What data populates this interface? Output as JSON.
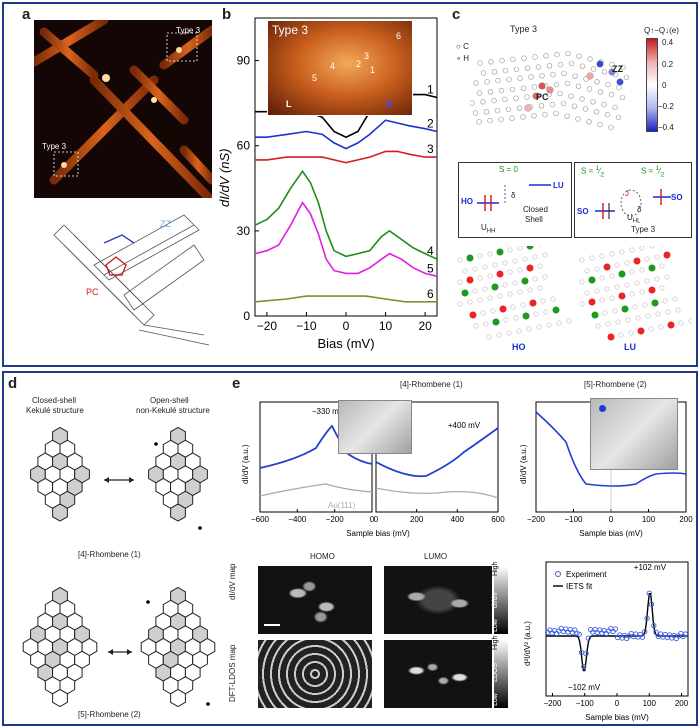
{
  "top_panel_labels": {
    "a": "a",
    "b": "b",
    "c": "c"
  },
  "bottom_panel_labels": {
    "d": "d",
    "e": "e"
  },
  "panel_a": {
    "type3_label_1": "Type 3",
    "type3_label_2": "Type 3",
    "zz_label": "ZZ",
    "pc_label": "PC"
  },
  "panel_b": {
    "inset_title": "Type 3",
    "inset_numbers": [
      "1",
      "2",
      "3",
      "4",
      "5",
      "6"
    ],
    "inset_left": "L",
    "inset_right": "R",
    "chart_data": {
      "type": "line",
      "xlabel": "Bias (mV)",
      "ylabel": "dI/dV (nS)",
      "xlim": [
        -23,
        23
      ],
      "ylim": [
        0,
        105
      ],
      "xticks": [
        -20,
        -10,
        0,
        10,
        20
      ],
      "yticks": [
        0,
        30,
        60,
        90
      ],
      "series": [
        {
          "name": "1",
          "color": "#000000",
          "x": [
            -23,
            -20,
            -15,
            -10,
            -6,
            -3,
            0,
            3,
            6,
            10,
            13,
            16,
            20,
            23
          ],
          "y": [
            72,
            72,
            73,
            72,
            70,
            65,
            63,
            65,
            72,
            82,
            80,
            78,
            78,
            77
          ]
        },
        {
          "name": "2",
          "color": "#1f2fd0",
          "x": [
            -23,
            -20,
            -15,
            -10,
            -6,
            -3,
            0,
            3,
            6,
            10,
            13,
            16,
            20,
            23
          ],
          "y": [
            63,
            63,
            64,
            65,
            64,
            61,
            59,
            61,
            64,
            69,
            68,
            67,
            66,
            65
          ]
        },
        {
          "name": "3",
          "color": "#d11f1f",
          "x": [
            -23,
            -20,
            -15,
            -10,
            -6,
            -3,
            0,
            3,
            6,
            10,
            13,
            16,
            20,
            23
          ],
          "y": [
            55,
            55,
            56,
            56,
            56,
            55,
            54,
            55,
            56,
            58,
            58,
            57,
            56,
            56
          ]
        },
        {
          "name": "4",
          "color": "#1a8f1a",
          "x": [
            -23,
            -20,
            -17,
            -14,
            -11,
            -9,
            -7,
            -5,
            -3,
            0,
            3,
            6,
            9,
            11,
            14,
            17,
            20,
            23
          ],
          "y": [
            32,
            34,
            38,
            45,
            51,
            47,
            40,
            30,
            23,
            21,
            22,
            23,
            28,
            30,
            27,
            24,
            22,
            20
          ]
        },
        {
          "name": "5",
          "color": "#e020e0",
          "x": [
            -23,
            -20,
            -17,
            -14,
            -11,
            -9,
            -7,
            -5,
            -3,
            0,
            3,
            6,
            9,
            11,
            14,
            17,
            20,
            23
          ],
          "y": [
            22,
            23,
            25,
            32,
            40,
            36,
            29,
            20,
            16,
            15,
            15,
            17,
            20,
            22,
            20,
            17,
            15,
            14
          ]
        },
        {
          "name": "6",
          "color": "#8a8a2a",
          "x": [
            -23,
            -15,
            -10,
            -5,
            0,
            5,
            10,
            15,
            23
          ],
          "y": [
            5,
            6,
            7,
            7,
            7,
            7,
            6,
            5,
            5
          ]
        }
      ]
    }
  },
  "panel_c": {
    "title": "Type 3",
    "legend_c": "C",
    "legend_h": "H",
    "colorbar_label": "Q↑−Q↓(e)",
    "colorbar_ticks": [
      "0.4",
      "0.2",
      "0",
      "−0.2",
      "−0.4"
    ],
    "zz_label": "ZZ",
    "pc_label": "PC",
    "closed_shell": {
      "spin": "S = 0",
      "ho": "HO",
      "lu": "LU",
      "delta": "δ",
      "u": "U",
      "u_sub": "HH",
      "caption_1": "Closed",
      "caption_2": "Shell"
    },
    "type3": {
      "spin_left": "S = ",
      "spin_right": "S = ",
      "frac_num": "1",
      "frac_den": "2",
      "so_left": "SO",
      "so_right": "SO",
      "j": "J",
      "delta": "δ",
      "u": "U",
      "u_sub": "HL",
      "caption": "Type 3"
    },
    "ho_label": "HO",
    "lu_label": "LU"
  },
  "panel_d": {
    "left_title_1": "Closed-shell",
    "left_title_2": "Kekulé structure",
    "right_title_1": "Open-shell",
    "right_title_2": "non-Kekulé structure",
    "caption_4": "[4]-Rhombene (1)",
    "caption_5": "[5]-Rhombene (2)"
  },
  "panel_e": {
    "header_left": "[4]-Rhombene (1)",
    "header_right": "[5]-Rhombene (2)",
    "chart_left": {
      "type": "line",
      "ylabel": "dI/dV (a.u.)",
      "xlabel": "Sample bias (mV)",
      "xticks_left": [
        -600,
        -400,
        -200,
        0
      ],
      "xticks_right": [
        0,
        200,
        400,
        600
      ],
      "annotation_neg": "−330 mV",
      "annotation_pos": "+400 mV",
      "reference_label": "Au(111)"
    },
    "chart_right": {
      "type": "line",
      "ylabel": "dI/dV (a.u.)",
      "xlabel": "Sample bias (mV)",
      "xticks": [
        -200,
        -100,
        0,
        100,
        200
      ]
    },
    "maps": {
      "homo": "HOMO",
      "lumo": "LUMO",
      "row1_label": "dI/dV map",
      "row2_label": "DFT-LDOS map",
      "scale1_high": "High",
      "scale1_mid": "dI/dV",
      "scale1_low": "Low",
      "scale2_high": "High",
      "scale2_mid": "LDOS",
      "scale2_low": "Low"
    },
    "chart_iets": {
      "type": "scatter",
      "ylabel": "d²I/dV² (a.u.)",
      "xlabel": "Sample bias (mV)",
      "xticks": [
        -200,
        -100,
        0,
        100,
        200
      ],
      "legend_experiment": "Experiment",
      "legend_fit": "IETS fit",
      "annotation_pos": "+102 mV",
      "annotation_neg": "−102 mV"
    }
  }
}
